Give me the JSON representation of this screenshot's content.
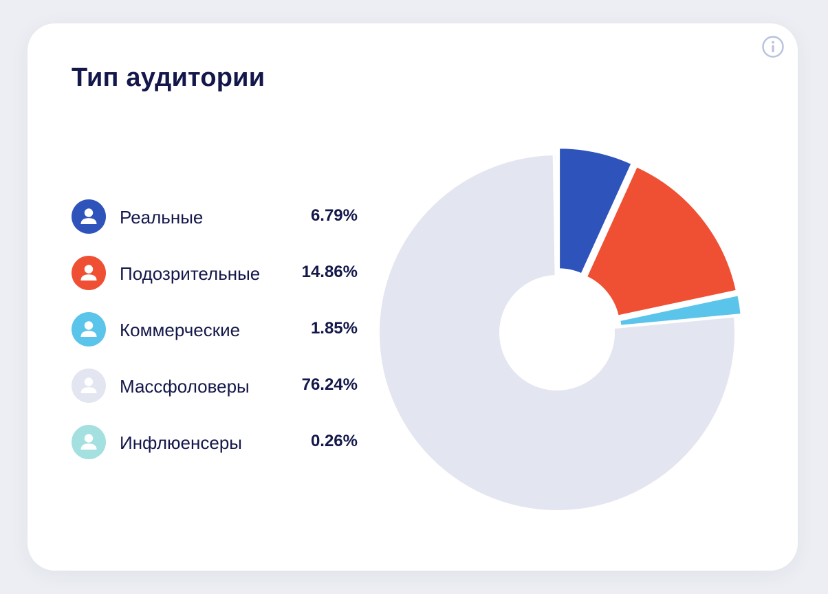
{
  "card": {
    "title": "Тип аудитории"
  },
  "info_icon": "info-icon",
  "chart_data": {
    "type": "pie",
    "donut": true,
    "start_angle_deg": 0,
    "direction": "clockwise",
    "slices": [
      {
        "label": "Реальные",
        "value": 6.79,
        "display": "6.79%",
        "color": "#2e54bb",
        "icon": "user-icon"
      },
      {
        "label": "Подозрительные",
        "value": 14.86,
        "display": "14.86%",
        "color": "#ef5034",
        "icon": "user-icon"
      },
      {
        "label": "Коммерческие",
        "value": 1.85,
        "display": "1.85%",
        "color": "#5bc4ea",
        "icon": "user-icon"
      },
      {
        "label": "Массфоловеры",
        "value": 76.24,
        "display": "76.24%",
        "color": "#e3e5f0",
        "icon": "user-icon"
      },
      {
        "label": "Инфлюенсеры",
        "value": 0.26,
        "display": "0.26%",
        "color": "#a3e0df",
        "icon": "user-icon"
      }
    ],
    "explode": {
      "Реальные": 10,
      "Подозрительные": 10,
      "Коммерческие": 10,
      "Массфоловеры": 0,
      "Инфлюенсеры": 0
    }
  }
}
